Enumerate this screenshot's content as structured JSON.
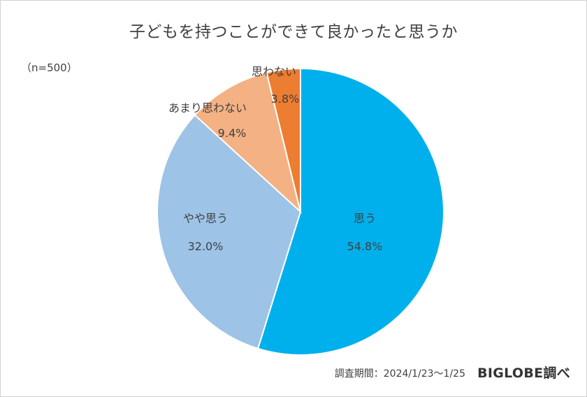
{
  "title": "子どもを持つことができて良かったと思うか",
  "sample_note": "（n=500）",
  "footer": {
    "period": "調査期間：2024/1/23～1/25",
    "brand": "BIGLOBE調べ"
  },
  "chart_data": {
    "type": "pie",
    "title": "子どもを持つことができて良かったと思うか",
    "start_angle_deg": 0,
    "direction": "clockwise",
    "slices": [
      {
        "label": "思う",
        "value": 54.8,
        "value_label": "54.8%",
        "color": "#00B0EC"
      },
      {
        "label": "やや思う",
        "value": 32.0,
        "value_label": "32.0%",
        "color": "#9DC3E6"
      },
      {
        "label": "あまり思わない",
        "value": 9.4,
        "value_label": "9.4%",
        "color": "#F4B183"
      },
      {
        "label": "思わない",
        "value": 3.8,
        "value_label": "3.8%",
        "color": "#ED7D31"
      }
    ]
  }
}
